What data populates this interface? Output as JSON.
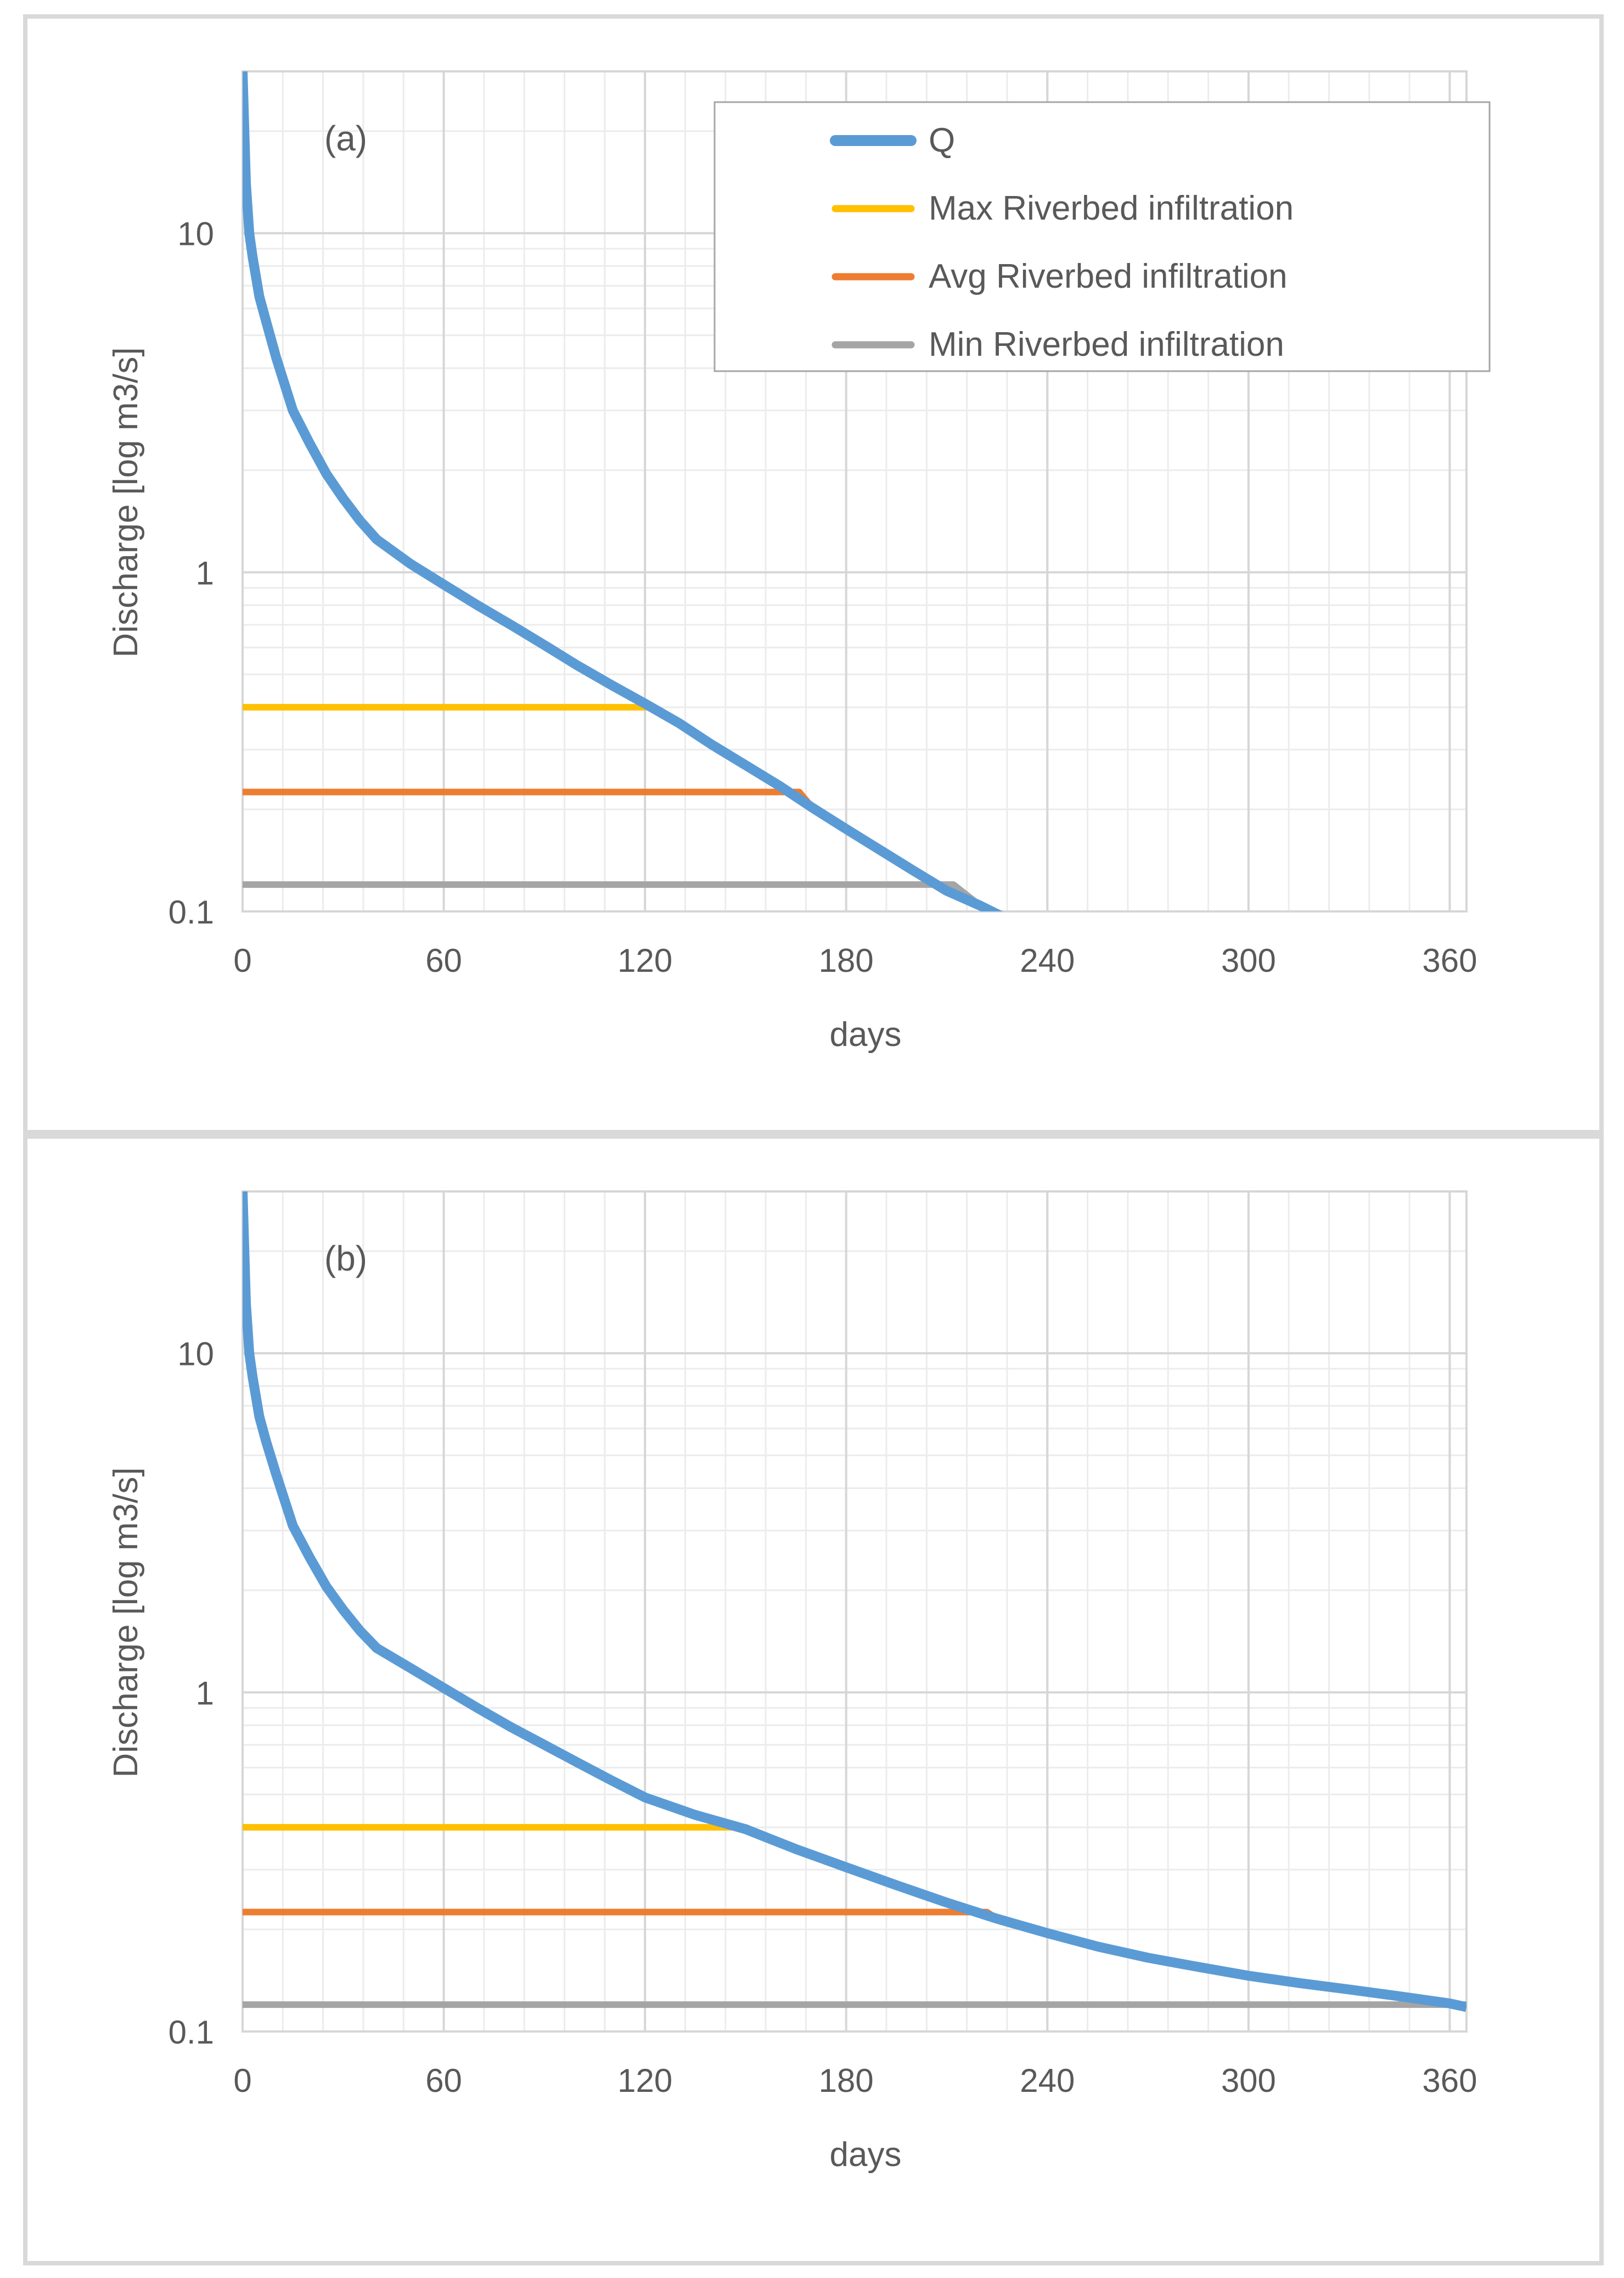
{
  "chart_data": [
    {
      "type": "line",
      "panel_label": "(a)",
      "xlabel": "days",
      "ylabel": "Discharge [log m3/s]",
      "yscale": "log",
      "xlim": [
        0,
        365
      ],
      "ylim": [
        0.1,
        30
      ],
      "xticks": [
        0,
        60,
        120,
        180,
        240,
        300,
        360
      ],
      "xtick_labels": [
        "0",
        "60",
        "120",
        "180",
        "240",
        "300",
        "360"
      ],
      "yticks": [
        0.1,
        1,
        10
      ],
      "ytick_labels": [
        "0.1",
        "1",
        "10"
      ],
      "grid": true,
      "legend_position": "top-right",
      "series": [
        {
          "name": "Q",
          "color": "#5b9bd5",
          "x": [
            0,
            1,
            2,
            3,
            5,
            7,
            10,
            15,
            20,
            25,
            30,
            35,
            40,
            50,
            60,
            70,
            80,
            90,
            100,
            110,
            120,
            130,
            140,
            150,
            160,
            170,
            180,
            190,
            200,
            210,
            220,
            228
          ],
          "y": [
            30,
            14,
            10,
            8.5,
            6.5,
            5.5,
            4.3,
            3.0,
            2.4,
            1.95,
            1.65,
            1.42,
            1.25,
            1.06,
            0.92,
            0.8,
            0.7,
            0.61,
            0.53,
            0.465,
            0.41,
            0.36,
            0.31,
            0.27,
            0.235,
            0.202,
            0.175,
            0.152,
            0.132,
            0.115,
            0.104,
            0.095
          ]
        },
        {
          "name": "Max Riverbed infiltration",
          "color": "#ffc000",
          "x": [
            0,
            122,
            130,
            140,
            150,
            160,
            170,
            180,
            190,
            200,
            210,
            220,
            228
          ],
          "y": [
            0.4,
            0.4,
            0.36,
            0.31,
            0.27,
            0.235,
            0.202,
            0.175,
            0.152,
            0.132,
            0.115,
            0.104,
            0.095
          ]
        },
        {
          "name": "Avg Riverbed infiltration",
          "color": "#ed7d31",
          "x": [
            0,
            166,
            170,
            180,
            190,
            200,
            210,
            220,
            228
          ],
          "y": [
            0.225,
            0.225,
            0.202,
            0.175,
            0.152,
            0.132,
            0.115,
            0.104,
            0.095
          ]
        },
        {
          "name": "Min Riverbed infiltration",
          "color": "#a5a5a5",
          "x": [
            0,
            212,
            220,
            228
          ],
          "y": [
            0.12,
            0.12,
            0.104,
            0.095
          ]
        }
      ]
    },
    {
      "type": "line",
      "panel_label": "(b)",
      "xlabel": "days",
      "ylabel": "Discharge [log m3/s]",
      "yscale": "log",
      "xlim": [
        0,
        365
      ],
      "ylim": [
        0.1,
        30
      ],
      "xticks": [
        0,
        60,
        120,
        180,
        240,
        300,
        360
      ],
      "xtick_labels": [
        "0",
        "60",
        "120",
        "180",
        "240",
        "300",
        "360"
      ],
      "yticks": [
        0.1,
        1,
        10
      ],
      "ytick_labels": [
        "0.1",
        "1",
        "10"
      ],
      "grid": true,
      "series": [
        {
          "name": "Q",
          "color": "#5b9bd5",
          "x": [
            0,
            1,
            2,
            3,
            5,
            7,
            10,
            15,
            20,
            25,
            30,
            35,
            40,
            50,
            60,
            70,
            80,
            90,
            100,
            110,
            120,
            135,
            150,
            165,
            180,
            195,
            210,
            225,
            240,
            255,
            270,
            285,
            300,
            315,
            330,
            345,
            360,
            365
          ],
          "y": [
            30,
            14,
            10,
            8.5,
            6.5,
            5.5,
            4.4,
            3.1,
            2.5,
            2.05,
            1.75,
            1.52,
            1.35,
            1.18,
            1.03,
            0.9,
            0.79,
            0.7,
            0.62,
            0.55,
            0.49,
            0.435,
            0.395,
            0.345,
            0.305,
            0.27,
            0.24,
            0.215,
            0.195,
            0.178,
            0.165,
            0.155,
            0.146,
            0.139,
            0.133,
            0.127,
            0.121,
            0.118
          ]
        },
        {
          "name": "Max Riverbed infiltration",
          "color": "#ffc000",
          "x": [
            0,
            150,
            165,
            180,
            195,
            210,
            225,
            240,
            255,
            270,
            285,
            300,
            315,
            330,
            345,
            360,
            365
          ],
          "y": [
            0.4,
            0.4,
            0.345,
            0.305,
            0.27,
            0.24,
            0.215,
            0.195,
            0.178,
            0.165,
            0.155,
            0.146,
            0.139,
            0.133,
            0.127,
            0.121,
            0.118
          ]
        },
        {
          "name": "Avg Riverbed infiltration",
          "color": "#ed7d31",
          "x": [
            0,
            222,
            225,
            240,
            255,
            270,
            285,
            300,
            315,
            330,
            345,
            360,
            365
          ],
          "y": [
            0.225,
            0.225,
            0.215,
            0.195,
            0.178,
            0.165,
            0.155,
            0.146,
            0.139,
            0.133,
            0.127,
            0.121,
            0.118
          ]
        },
        {
          "name": "Min Riverbed infiltration",
          "color": "#a5a5a5",
          "x": [
            0,
            365
          ],
          "y": [
            0.12,
            0.12
          ]
        }
      ]
    }
  ]
}
